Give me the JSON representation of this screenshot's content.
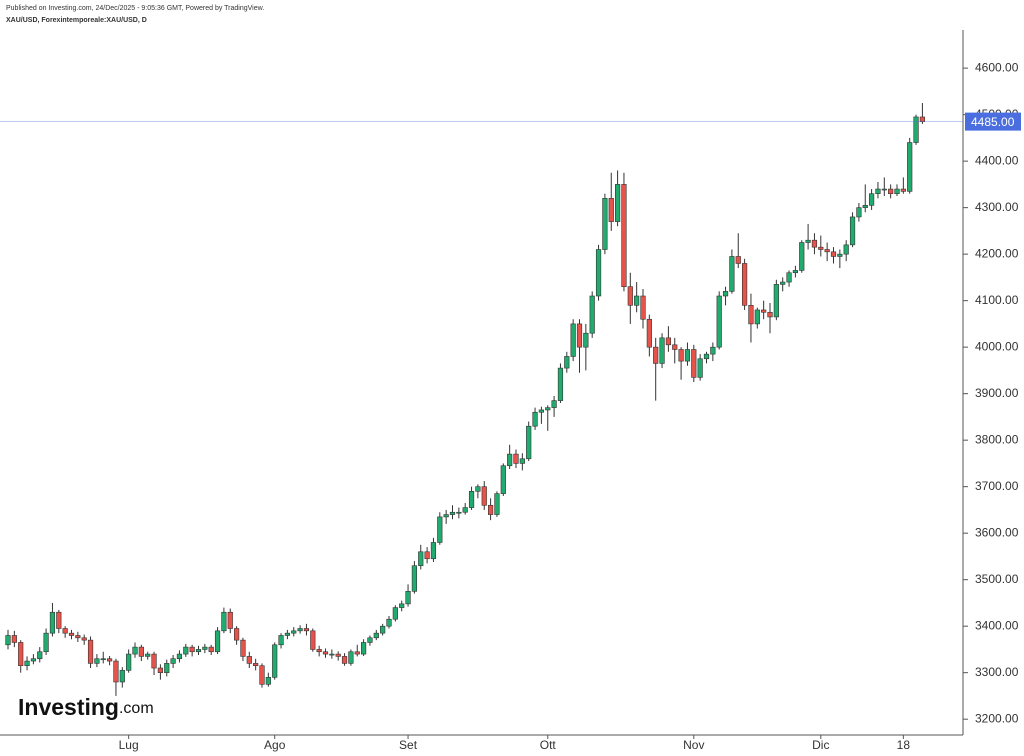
{
  "chart_data": {
    "type": "candlestick",
    "published": "Published on Investing.com, 24/Dec/2025 - 9:05:36 GMT, Powered by TradingView.",
    "title": "XAU/USD, Forexintemporeale:XAU/USD, D",
    "logo": {
      "name": "Investing",
      "suffix": ".com"
    },
    "categories": [
      null,
      null,
      null,
      null,
      null,
      null,
      null,
      null,
      null,
      null,
      null,
      null,
      null,
      null,
      null,
      null,
      null,
      null,
      null,
      "Lug",
      null,
      null,
      null,
      null,
      null,
      null,
      null,
      null,
      null,
      null,
      null,
      null,
      null,
      null,
      null,
      null,
      null,
      null,
      null,
      null,
      null,
      null,
      "Ago",
      null,
      null,
      null,
      null,
      null,
      null,
      null,
      null,
      null,
      null,
      null,
      null,
      null,
      null,
      null,
      null,
      null,
      null,
      null,
      null,
      "Set",
      null,
      null,
      null,
      null,
      null,
      null,
      null,
      null,
      null,
      null,
      null,
      null,
      null,
      null,
      null,
      null,
      null,
      null,
      null,
      null,
      null,
      "Ott",
      null,
      null,
      null,
      null,
      null,
      null,
      null,
      null,
      null,
      null,
      null,
      null,
      null,
      null,
      null,
      null,
      null,
      null,
      null,
      null,
      null,
      null,
      "Nov",
      null,
      null,
      null,
      null,
      null,
      null,
      null,
      null,
      null,
      null,
      null,
      null,
      null,
      null,
      null,
      null,
      null,
      null,
      null,
      "Dic",
      null,
      null,
      null,
      null,
      null,
      null,
      null,
      null,
      null,
      null,
      null,
      null,
      "18",
      null,
      null,
      null
    ],
    "open": [
      3360,
      3380,
      3365,
      3315,
      3325,
      3330,
      3345,
      3385,
      3430,
      3395,
      3385,
      3380,
      3375,
      3370,
      3320,
      3330,
      3330,
      3325,
      3280,
      3305,
      3340,
      3355,
      3335,
      3340,
      3310,
      3300,
      3320,
      3330,
      3340,
      3355,
      3345,
      3350,
      3355,
      3345,
      3390,
      3430,
      3395,
      3370,
      3335,
      3320,
      3315,
      3275,
      3290,
      3360,
      3380,
      3385,
      3390,
      3395,
      3390,
      3350,
      3345,
      3340,
      3340,
      3335,
      3320,
      3345,
      3340,
      3365,
      3375,
      3385,
      3400,
      3415,
      3440,
      3448,
      3475,
      3530,
      3560,
      3545,
      3580,
      3635,
      3640,
      3645,
      3645,
      3655,
      3690,
      3700,
      3660,
      3640,
      3685,
      3745,
      3770,
      3750,
      3760,
      3830,
      3860,
      3865,
      3870,
      3885,
      3955,
      3980,
      4050,
      4000,
      4030,
      4110,
      4210,
      4320,
      4270,
      4350,
      4130,
      4090,
      4110,
      4060,
      4000,
      3965,
      4020,
      4005,
      3995,
      3970,
      3995,
      3935,
      3975,
      3985,
      4000,
      4110,
      4120,
      4195,
      4180,
      4090,
      4050,
      4080,
      4075,
      4065,
      4135,
      4140,
      4160,
      4165,
      4225,
      4230,
      4215,
      4210,
      4205,
      4195,
      4200,
      4220,
      4280,
      4300,
      4305,
      4330,
      4340,
      4340,
      4330,
      4340,
      4335,
      4440,
      4495
    ],
    "high": [
      3392,
      3390,
      3370,
      3335,
      3340,
      3355,
      3395,
      3450,
      3435,
      3400,
      3392,
      3388,
      3382,
      3378,
      3340,
      3345,
      3336,
      3330,
      3312,
      3350,
      3365,
      3360,
      3345,
      3345,
      3318,
      3328,
      3338,
      3348,
      3362,
      3360,
      3358,
      3362,
      3360,
      3398,
      3440,
      3438,
      3400,
      3375,
      3345,
      3330,
      3320,
      3300,
      3365,
      3385,
      3392,
      3398,
      3402,
      3405,
      3395,
      3358,
      3352,
      3350,
      3346,
      3342,
      3350,
      3360,
      3372,
      3380,
      3392,
      3405,
      3422,
      3445,
      3455,
      3490,
      3540,
      3575,
      3570,
      3590,
      3645,
      3650,
      3660,
      3655,
      3665,
      3700,
      3705,
      3712,
      3675,
      3690,
      3750,
      3790,
      3780,
      3772,
      3840,
      3870,
      3872,
      3875,
      3895,
      3965,
      3990,
      4060,
      4060,
      4050,
      4120,
      4220,
      4330,
      4375,
      4380,
      4375,
      4160,
      4140,
      4125,
      4070,
      4020,
      4030,
      4045,
      4020,
      4000,
      4010,
      4005,
      3985,
      3990,
      4010,
      4120,
      4130,
      4210,
      4245,
      4190,
      4115,
      4085,
      4100,
      4095,
      4145,
      4150,
      4165,
      4175,
      4230,
      4265,
      4245,
      4240,
      4225,
      4215,
      4210,
      4230,
      4290,
      4310,
      4350,
      4340,
      4355,
      4365,
      4350,
      4350,
      4365,
      4450,
      4500,
      4525
    ],
    "low": [
      3350,
      3355,
      3300,
      3305,
      3318,
      3322,
      3338,
      3378,
      3385,
      3375,
      3372,
      3366,
      3360,
      3310,
      3312,
      3320,
      3316,
      3250,
      3268,
      3300,
      3332,
      3325,
      3328,
      3295,
      3285,
      3292,
      3310,
      3322,
      3334,
      3335,
      3338,
      3342,
      3338,
      3340,
      3385,
      3385,
      3360,
      3325,
      3310,
      3305,
      3268,
      3270,
      3285,
      3352,
      3372,
      3378,
      3384,
      3380,
      3345,
      3335,
      3332,
      3330,
      3326,
      3315,
      3315,
      3335,
      3336,
      3358,
      3370,
      3380,
      3395,
      3410,
      3432,
      3442,
      3470,
      3522,
      3535,
      3538,
      3575,
      3620,
      3630,
      3632,
      3640,
      3650,
      3675,
      3650,
      3628,
      3635,
      3680,
      3738,
      3740,
      3735,
      3755,
      3822,
      3835,
      3820,
      3850,
      3880,
      3945,
      3970,
      3945,
      3950,
      4020,
      4100,
      4200,
      4250,
      4260,
      4120,
      4050,
      4075,
      4040,
      3980,
      3885,
      3955,
      3990,
      3965,
      3930,
      3960,
      3925,
      3928,
      3965,
      3970,
      3995,
      4090,
      4115,
      4170,
      4080,
      4010,
      4040,
      4060,
      4030,
      4058,
      4120,
      4130,
      4150,
      4160,
      4210,
      4200,
      4195,
      4185,
      4180,
      4170,
      4185,
      4215,
      4270,
      4290,
      4295,
      4320,
      4325,
      4320,
      4325,
      4330,
      4330,
      4435,
      4480
    ],
    "close": [
      3380,
      3365,
      3315,
      3325,
      3330,
      3345,
      3385,
      3430,
      3395,
      3385,
      3380,
      3375,
      3370,
      3320,
      3330,
      3330,
      3325,
      3280,
      3305,
      3340,
      3355,
      3335,
      3340,
      3310,
      3300,
      3320,
      3330,
      3340,
      3355,
      3345,
      3350,
      3355,
      3345,
      3390,
      3430,
      3395,
      3370,
      3335,
      3320,
      3315,
      3275,
      3290,
      3360,
      3380,
      3385,
      3390,
      3395,
      3390,
      3350,
      3345,
      3340,
      3340,
      3335,
      3320,
      3345,
      3340,
      3365,
      3375,
      3385,
      3400,
      3415,
      3440,
      3448,
      3475,
      3530,
      3560,
      3545,
      3580,
      3635,
      3640,
      3645,
      3645,
      3655,
      3690,
      3700,
      3660,
      3640,
      3685,
      3745,
      3770,
      3750,
      3760,
      3830,
      3860,
      3865,
      3870,
      3885,
      3955,
      3980,
      4050,
      4000,
      4030,
      4110,
      4210,
      4320,
      4270,
      4350,
      4130,
      4090,
      4110,
      4060,
      4000,
      3965,
      4020,
      4005,
      3995,
      3970,
      3995,
      3935,
      3975,
      3985,
      4000,
      4110,
      4120,
      4195,
      4180,
      4090,
      4050,
      4080,
      4075,
      4065,
      4135,
      4140,
      4160,
      4165,
      4225,
      4230,
      4215,
      4210,
      4205,
      4195,
      4200,
      4220,
      4280,
      4300,
      4305,
      4330,
      4340,
      4340,
      4330,
      4340,
      4335,
      4440,
      4495,
      4485
    ],
    "up_color": "#22ab6e",
    "down_color": "#e5534b",
    "wick_color": "#333333",
    "last_price": {
      "value": 4485,
      "label": "4485.00"
    },
    "last_price_color": "#4a6ee0",
    "ylim": [
      3166,
      4682
    ],
    "yticks": [
      {
        "value": 3200,
        "label": "3200.00"
      },
      {
        "value": 3300,
        "label": "3300.00"
      },
      {
        "value": 3400,
        "label": "3400.00"
      },
      {
        "value": 3500,
        "label": "3500.00"
      },
      {
        "value": 3600,
        "label": "3600.00"
      },
      {
        "value": 3700,
        "label": "3700.00"
      },
      {
        "value": 3800,
        "label": "3800.00"
      },
      {
        "value": 3900,
        "label": "3900.00"
      },
      {
        "value": 4000,
        "label": "4000.00"
      },
      {
        "value": 4100,
        "label": "4100.00"
      },
      {
        "value": 4200,
        "label": "4200.00"
      },
      {
        "value": 4300,
        "label": "4300.00"
      },
      {
        "value": 4400,
        "label": "4400.00"
      },
      {
        "value": 4500,
        "label": "4500.00"
      },
      {
        "value": 4600,
        "label": "4600.00"
      }
    ],
    "grid": false
  }
}
